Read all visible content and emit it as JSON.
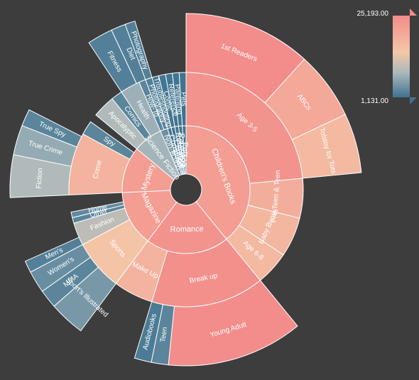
{
  "chart_data": {
    "type": "sunburst",
    "color_scale": {
      "min": 1131.0,
      "max": 25193.0,
      "min_label": "1,131.00",
      "max_label": "25,193.00",
      "stops": [
        "#3f7390",
        "#a9b8bc",
        "#f4c7a8",
        "#f28c8a"
      ]
    },
    "nodes": [
      {
        "name": "Children's Books",
        "value": 50000,
        "color": 22000,
        "children": [
          {
            "name": "Age 3-5",
            "value": 30000,
            "color": 24000,
            "children": [
              {
                "name": "1st Readers",
                "value": 15000,
                "color": 25000
              },
              {
                "name": "ABCs",
                "value": 8000,
                "color": 20000
              },
              {
                "name": "Tolstoy for Tots",
                "value": 7000,
                "color": 17000
              }
            ]
          },
          {
            "name": "Pre-Teen & Teen",
            "value": 7000,
            "color": 19000
          },
          {
            "name": "Baby Books",
            "value": 7000,
            "color": 17500
          },
          {
            "name": "Age 6-8",
            "value": 6000,
            "color": 17000
          }
        ]
      },
      {
        "name": "Romance",
        "value": 27000,
        "color": 24000,
        "children": [
          {
            "name": "Break up",
            "value": 20000,
            "color": 24500,
            "children": [
              {
                "name": "Young Adult",
                "value": 16000,
                "color": 25000
              },
              {
                "name": "Teen",
                "value": 2000,
                "color": 3000
              },
              {
                "name": "Audiobooks",
                "value": 2000,
                "color": 2000
              }
            ]
          },
          {
            "name": "Make Up",
            "value": 7000,
            "color": 18000
          }
        ]
      },
      {
        "name": "Magazine",
        "value": 18000,
        "color": 22000,
        "children": [
          {
            "name": "Sports",
            "value": 9000,
            "color": 15000,
            "children": [
              {
                "name": "Sport's Illustrated",
                "value": 4200,
                "color": 5000
              },
              {
                "name": "MMA",
                "value": 2200,
                "color": 3000
              },
              {
                "name": "Women's",
                "value": 2600,
                "color": 4000
              }
            ]
          },
          {
            "name": "Fashion",
            "value": 4000,
            "color": 10000,
            "children": [
              {
                "name": "Men's",
                "value": 1400,
                "color": 2500
              }
            ]
          },
          {
            "name": "Other",
            "value": 1000,
            "color": 3000
          },
          {
            "name": "Home",
            "value": 1000,
            "color": 3500
          }
        ]
      },
      {
        "name": "Mystery",
        "value": 15000,
        "color": 22000,
        "children": [
          {
            "name": "Crime",
            "value": 11000,
            "color": 18000,
            "children": [
              {
                "name": "Fiction",
                "value": 5000,
                "color": 9000
              },
              {
                "name": "True Crime",
                "value": 3500,
                "color": 7000
              },
              {
                "name": "True Spy",
                "value": 2000,
                "color": 3000
              }
            ]
          },
          {
            "name": "Spy",
            "value": 2500,
            "color": 3000
          }
        ]
      },
      {
        "name": "Science Fiction",
        "value": 9500,
        "color": 8000,
        "children": [
          {
            "name": "Apocalyptic",
            "value": 4000,
            "color": 9000
          },
          {
            "name": "Comics",
            "value": 2000,
            "color": 3000
          },
          {
            "name": "Health",
            "value": 3500,
            "color": 7500,
            "children": [
              {
                "name": "Fitness",
                "value": 3000,
                "color": 2500
              },
              {
                "name": "Diet",
                "value": 2000,
                "color": 2500
              }
            ]
          }
        ]
      },
      {
        "name": "Non-fiction",
        "value": 2400,
        "color": 4000,
        "children": [
          {
            "name": "How-To",
            "value": 1200,
            "color": 3000
          },
          {
            "name": "Photography",
            "value": 1200,
            "color": 2500,
            "children": [
              {
                "name": "Photography",
                "value": 1200,
                "color": 2500
              }
            ]
          }
        ]
      },
      {
        "name": "Computer",
        "value": 1200,
        "color": 1500,
        "children": [
          {
            "name": "Troubleshooting",
            "value": 1200,
            "color": 1500
          }
        ]
      },
      {
        "name": "Comic",
        "value": 1200,
        "color": 1400,
        "children": [
          {
            "name": "Comic",
            "value": 1200,
            "color": 1400
          }
        ]
      },
      {
        "name": "Reference",
        "value": 1200,
        "color": 1300,
        "children": [
          {
            "name": "Reference",
            "value": 1200,
            "color": 1300
          }
        ]
      },
      {
        "name": "Parenting",
        "value": 1200,
        "color": 1200,
        "children": [
          {
            "name": "Parenting",
            "value": 1200,
            "color": 1200
          }
        ]
      },
      {
        "name": "Pets",
        "value": 1200,
        "color": 1131,
        "children": [
          {
            "name": "Pets",
            "value": 1200,
            "color": 1131
          }
        ]
      }
    ]
  }
}
